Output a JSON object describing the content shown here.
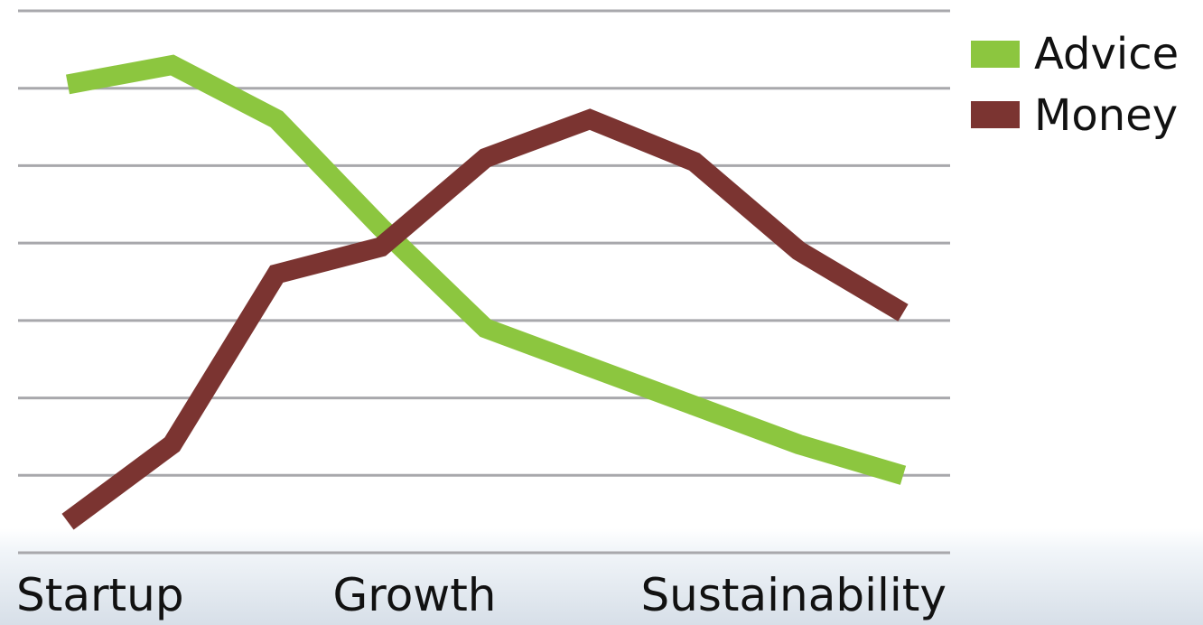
{
  "chart_data": {
    "type": "line",
    "title": "",
    "xlabel": "",
    "ylabel": "",
    "ylim": [
      0,
      7
    ],
    "grid": true,
    "legend_position": "top-right",
    "x_tick_labels": [
      "Startup",
      "Growth",
      "Sustainability"
    ],
    "x": [
      1,
      2,
      3,
      4,
      5,
      6,
      7,
      8,
      9
    ],
    "series": [
      {
        "name": "Advice",
        "color": "#8cc63f",
        "values": [
          6.05,
          6.3,
          5.6,
          4.2,
          2.9,
          2.4,
          1.9,
          1.4,
          1.0
        ]
      },
      {
        "name": "Money",
        "color": "#7b3431",
        "values": [
          0.4,
          1.4,
          3.6,
          3.95,
          5.1,
          5.6,
          5.05,
          3.9,
          3.1
        ]
      }
    ]
  }
}
